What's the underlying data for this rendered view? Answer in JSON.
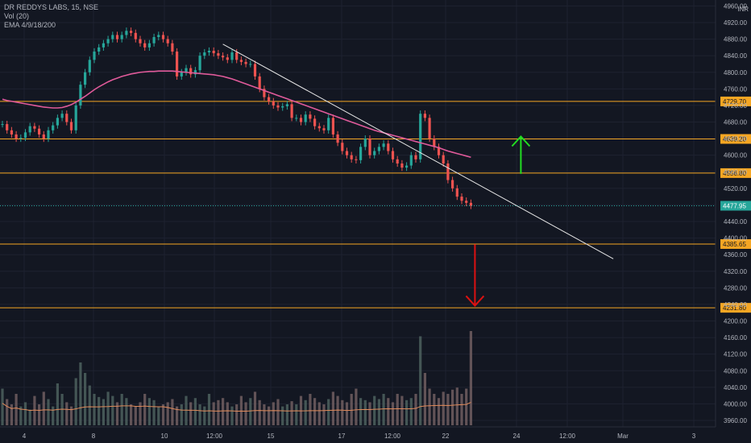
{
  "legend": {
    "symbol_line": "DR REDDYS LABS, 15, NSE",
    "volume_line": "Vol (20)",
    "ema_line": "EMA 4/9/18/200"
  },
  "currency": "INR",
  "colors": {
    "background": "#131722",
    "up": "#26a69a",
    "down": "#ef5350",
    "ema200": "#e05a9a",
    "vol_ma": "#e08a5a",
    "level": "#f5a623",
    "trendline": "#e6e6e6",
    "arrow_up": "#22dd22",
    "arrow_down": "#dd1111",
    "last_price": "#26a69a"
  },
  "chart_data": {
    "type": "candlestick",
    "title": "DR REDDYS LABS, 15, NSE",
    "ylim": [
      3940,
      4940
    ],
    "y_ticks": [
      3960,
      4000,
      4040,
      4080,
      4120,
      4160,
      4200,
      4240,
      4280,
      4320,
      4360,
      4400,
      4440,
      4480,
      4520,
      4560,
      4600,
      4640,
      4680,
      4720,
      4760,
      4800,
      4840,
      4880,
      4920,
      4960
    ],
    "x_ticks": [
      "4",
      "8",
      "10",
      "12:00",
      "15",
      "17",
      "12:00",
      "22",
      "24",
      "12:00",
      "Mar",
      "3"
    ],
    "last_price": 4477.95,
    "horizontal_levels": [
      {
        "label": "4729.70",
        "value": 4729.7
      },
      {
        "label": "4639.20",
        "value": 4639.2
      },
      {
        "label": "4556.80",
        "value": 4556.8
      },
      {
        "label": "4385.65",
        "value": 4385.65
      },
      {
        "label": "4231.80",
        "value": 4231.8
      }
    ],
    "trendline": {
      "from_bar": 48,
      "from_price": 4868,
      "to_bar": 133,
      "to_price": 4350
    },
    "arrows": [
      {
        "direction": "up",
        "bar": 112,
        "from_price": 4555,
        "to_price": 4645
      },
      {
        "direction": "down",
        "bar": 102,
        "from_price": 4385,
        "to_price": 4237
      }
    ],
    "close_series": [
      4675,
      4660,
      4650,
      4640,
      4642,
      4655,
      4670,
      4664,
      4650,
      4640,
      4660,
      4672,
      4690,
      4700,
      4680,
      4660,
      4720,
      4770,
      4800,
      4830,
      4850,
      4860,
      4870,
      4880,
      4890,
      4880,
      4890,
      4900,
      4895,
      4880,
      4870,
      4860,
      4870,
      4885,
      4890,
      4880,
      4870,
      4850,
      4790,
      4800,
      4810,
      4795,
      4805,
      4840,
      4848,
      4852,
      4846,
      4840,
      4836,
      4830,
      4848,
      4830,
      4825,
      4820,
      4820,
      4790,
      4760,
      4740,
      4730,
      4720,
      4715,
      4718,
      4723,
      4690,
      4690,
      4680,
      4698,
      4688,
      4670,
      4665,
      4660,
      4690,
      4650,
      4630,
      4610,
      4600,
      4590,
      4588,
      4620,
      4640,
      4600,
      4610,
      4620,
      4628,
      4610,
      4590,
      4580,
      4570,
      4575,
      4600,
      4590,
      4700,
      4690,
      4640,
      4620,
      4600,
      4580,
      4540,
      4520,
      4500,
      4490,
      4485,
      4477.95
    ],
    "ema200_series": [
      4735,
      4732,
      4730,
      4728,
      4726,
      4724,
      4722,
      4720,
      4718,
      4716,
      4715,
      4714,
      4714,
      4715,
      4718,
      4722,
      4728,
      4735,
      4742,
      4750,
      4758,
      4765,
      4771,
      4777,
      4782,
      4786,
      4790,
      4793,
      4796,
      4798,
      4800,
      4801,
      4802,
      4802,
      4803,
      4803,
      4803,
      4803,
      4802,
      4801,
      4800,
      4799,
      4798,
      4797,
      4796,
      4795,
      4794,
      4792,
      4790,
      4787,
      4784,
      4780,
      4776,
      4772,
      4768,
      4764,
      4760,
      4756,
      4752,
      4748,
      4744,
      4740,
      4736,
      4732,
      4728,
      4724,
      4720,
      4716,
      4712,
      4708,
      4704,
      4700,
      4696,
      4692,
      4688,
      4684,
      4680,
      4676,
      4672,
      4668,
      4664,
      4660,
      4657,
      4654,
      4651,
      4648,
      4645,
      4642,
      4639,
      4636,
      4633,
      4630,
      4627,
      4624,
      4621,
      4618,
      4614,
      4610,
      4607,
      4604,
      4601,
      4598,
      4595
    ],
    "volume_relative": [
      0.35,
      0.25,
      0.2,
      0.3,
      0.18,
      0.22,
      0.15,
      0.28,
      0.2,
      0.32,
      0.25,
      0.18,
      0.4,
      0.3,
      0.22,
      0.18,
      0.45,
      0.6,
      0.5,
      0.38,
      0.3,
      0.27,
      0.25,
      0.32,
      0.28,
      0.22,
      0.3,
      0.26,
      0.2,
      0.18,
      0.22,
      0.3,
      0.26,
      0.24,
      0.18,
      0.2,
      0.22,
      0.25,
      0.18,
      0.2,
      0.28,
      0.22,
      0.26,
      0.2,
      0.18,
      0.3,
      0.22,
      0.24,
      0.26,
      0.22,
      0.18,
      0.2,
      0.28,
      0.22,
      0.26,
      0.32,
      0.24,
      0.2,
      0.18,
      0.22,
      0.25,
      0.18,
      0.2,
      0.23,
      0.2,
      0.28,
      0.24,
      0.3,
      0.26,
      0.22,
      0.2,
      0.25,
      0.32,
      0.28,
      0.24,
      0.22,
      0.3,
      0.35,
      0.26,
      0.24,
      0.22,
      0.28,
      0.25,
      0.3,
      0.26,
      0.22,
      0.3,
      0.28,
      0.24,
      0.26,
      0.3,
      0.85,
      0.5,
      0.35,
      0.3,
      0.26,
      0.32,
      0.3,
      0.34,
      0.36,
      0.3,
      0.35,
      0.9
    ]
  }
}
